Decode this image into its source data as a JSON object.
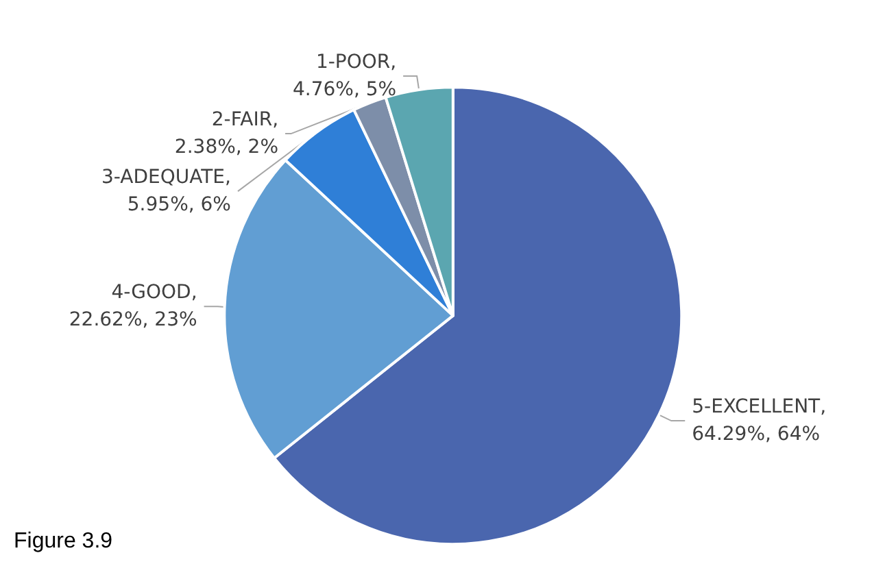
{
  "chart_data": {
    "type": "pie",
    "categories": [
      "5-EXCELLENT",
      "4-GOOD",
      "3-ADEQUATE",
      "2-FAIR",
      "1-POOR"
    ],
    "values": [
      64.29,
      22.62,
      5.95,
      2.38,
      4.76
    ],
    "colors": [
      "#4a66ae",
      "#619ed3",
      "#2f7fd7",
      "#7d8ea9",
      "#5ba6b0"
    ],
    "value_labels": [
      ", 64.29%, 64%",
      ", 22.62%, 23%",
      ", 5.95%, 6%",
      ", 2.38%, 2%",
      ", 4.76%, 5%"
    ],
    "legend": false,
    "annotations": [
      "Figure 3.9"
    ]
  }
}
